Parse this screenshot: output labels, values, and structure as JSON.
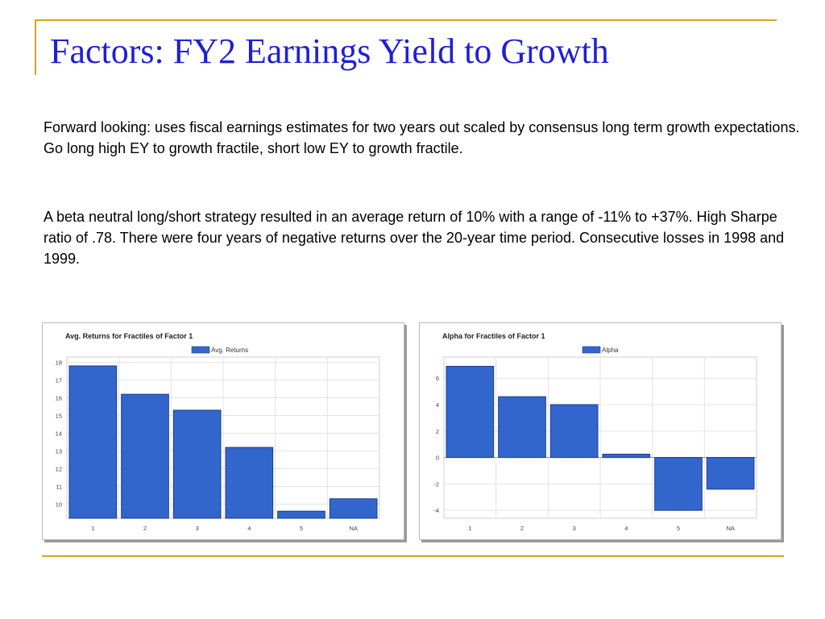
{
  "slide": {
    "title": "Factors: FY2 Earnings Yield to Growth",
    "paragraphs": [
      "Forward looking: uses fiscal earnings estimates for two years out scaled by consensus long term growth expectations.  Go long high EY to growth fractile, short low EY to growth fractile.",
      "A beta neutral long/short strategy resulted in an average return of 10% with a range of -11% to +37%. High Sharpe ratio of .78. There were four years of negative returns over the 20-year time period. Consecutive losses in 1998 and 1999."
    ]
  },
  "colors": {
    "title": "#1f1fd6",
    "accent_line": "#d9a21b",
    "bar_fill": "#3366cc",
    "bar_stroke": "#1a3d8a",
    "grid": "#e3e3e3"
  },
  "chart_data": [
    {
      "type": "bar",
      "title": "Avg. Returns for Fractiles of Factor 1",
      "legend": "top",
      "grid": true,
      "categories": [
        "1",
        "2",
        "3",
        "4",
        "5",
        "NA"
      ],
      "series": [
        {
          "name": "Avg. Returns",
          "values": [
            17.8,
            16.2,
            15.3,
            13.2,
            9.6,
            10.3
          ]
        }
      ],
      "ylim": [
        9.2,
        18.3
      ],
      "yticks": [
        10,
        11,
        12,
        13,
        14,
        15,
        16,
        17,
        18
      ]
    },
    {
      "type": "bar",
      "title": "Alpha for Fractiles of Factor 1",
      "legend": "top",
      "grid": true,
      "categories": [
        "1",
        "2",
        "3",
        "4",
        "5",
        "NA"
      ],
      "series": [
        {
          "name": "Alpha",
          "values": [
            6.9,
            4.6,
            4.0,
            0.25,
            -4.0,
            -2.4
          ]
        }
      ],
      "ylim": [
        -4.6,
        7.6
      ],
      "yticks": [
        -4,
        -2,
        0,
        2,
        4,
        6
      ]
    }
  ]
}
